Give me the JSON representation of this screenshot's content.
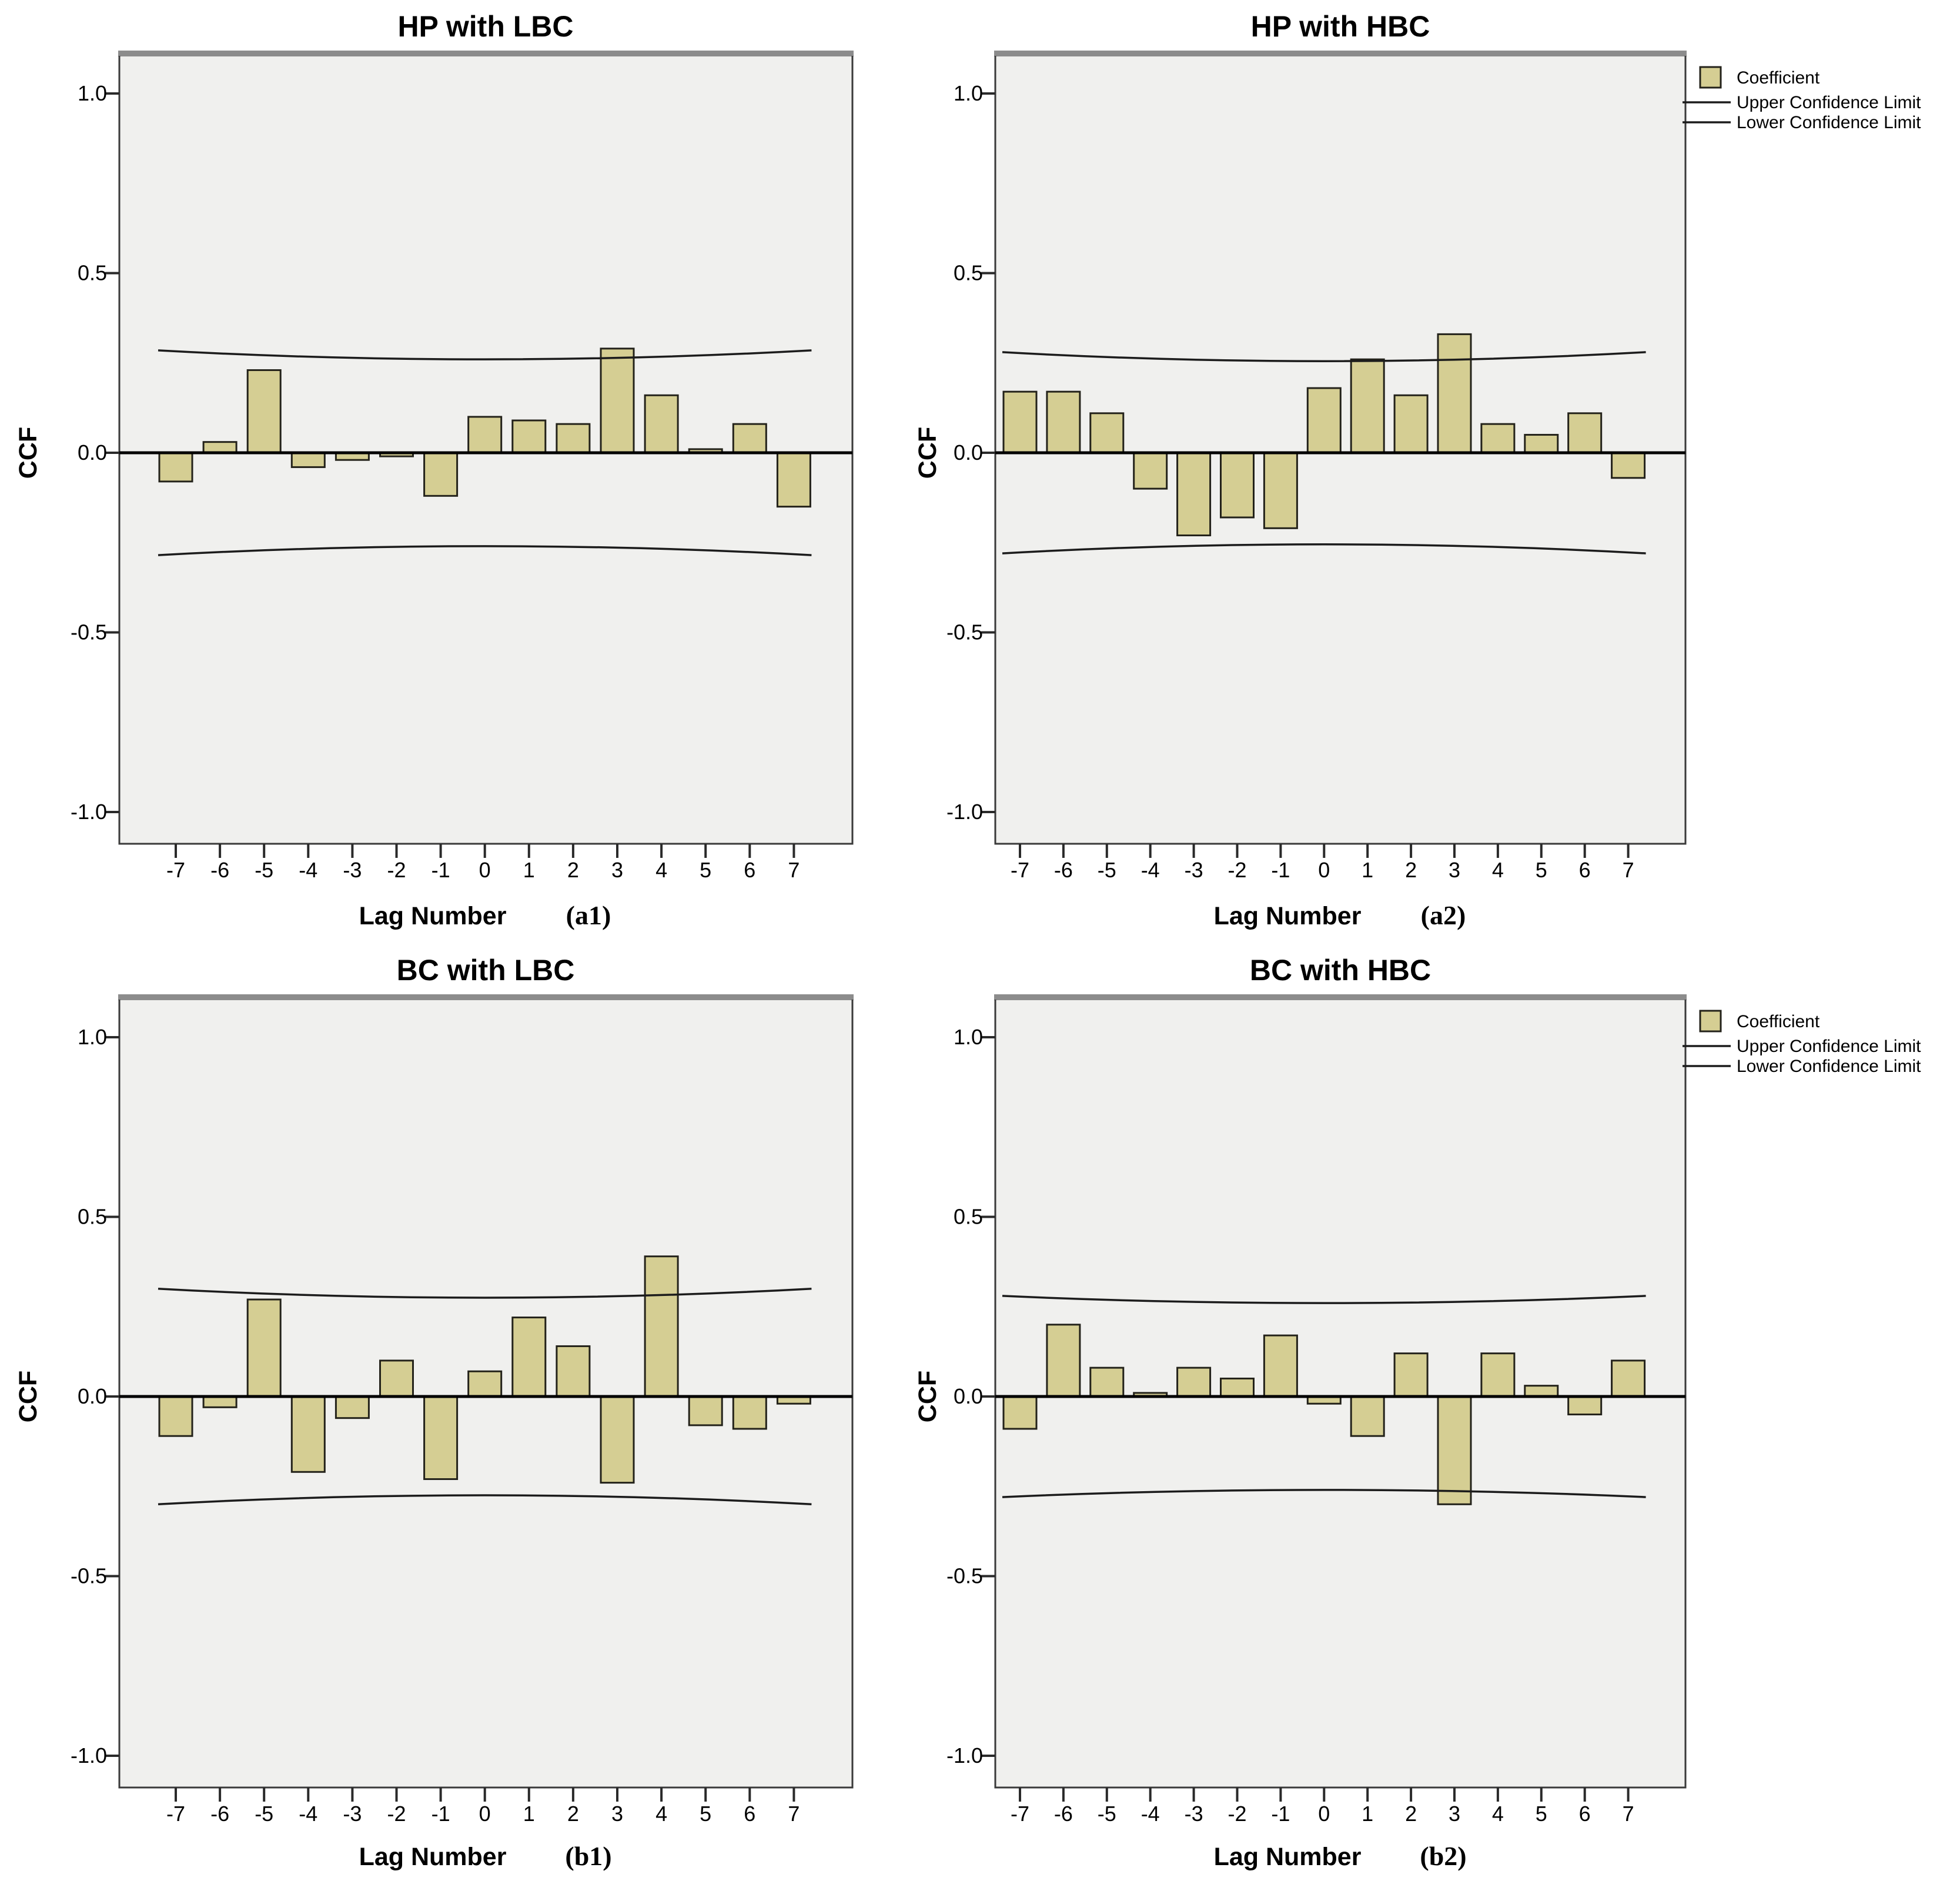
{
  "figure": {
    "background": "#ffffff",
    "plot_background": "#f0f0ee",
    "frame_color": "#3a3a3a",
    "frame_top_color": "#8c8c8c",
    "zero_line_color": "#000000",
    "cl_line_color": "#1c1c1c",
    "bar_fill": "#d5ce93",
    "bar_border": "#23221a"
  },
  "axes": {
    "ylabel": "CCF",
    "xlabel": "Lag Number",
    "ytick_labels": [
      "1.0",
      "0.5",
      "0.0",
      "-0.5",
      "-1.0"
    ],
    "yticks": [
      1.0,
      0.5,
      0.0,
      -0.5,
      -1.0
    ],
    "xtick_labels": [
      "-7",
      "-6",
      "-5",
      "-4",
      "-3",
      "-2",
      "-1",
      "0",
      "1",
      "2",
      "3",
      "4",
      "5",
      "6",
      "7"
    ],
    "ylim": [
      -1.1,
      1.1
    ]
  },
  "legend": {
    "position": "top-right-outside",
    "items": [
      {
        "label": "Coefficient",
        "swatch": "khaki-square"
      },
      {
        "label": "Upper Confidence Limit",
        "swatch": "line"
      },
      {
        "label": "Lower Confidence Limit",
        "swatch": "line"
      }
    ]
  },
  "chart_data": [
    {
      "type": "bar",
      "title": "HP with LBC",
      "panel_tag": "(a1)",
      "xlabel": "Lag Number",
      "ylabel": "CCF",
      "x": [
        -7,
        -6,
        -5,
        -4,
        -3,
        -2,
        -1,
        0,
        1,
        2,
        3,
        4,
        5,
        6,
        7
      ],
      "values": [
        -0.08,
        0.03,
        0.23,
        -0.04,
        -0.02,
        -0.01,
        -0.12,
        0.1,
        0.09,
        0.08,
        0.29,
        0.16,
        0.01,
        0.08,
        -0.15
      ],
      "upper_confidence_limit": {
        "at_ends": 0.285,
        "at_center": 0.26
      },
      "lower_confidence_limit": {
        "at_ends": -0.285,
        "at_center": -0.26
      },
      "yticks": [
        1.0,
        0.5,
        0.0,
        -0.5,
        -1.0
      ],
      "ylim": [
        -1.1,
        1.1
      ],
      "grid": false,
      "legend_visible": false
    },
    {
      "type": "bar",
      "title": "HP with HBC",
      "panel_tag": "(a2)",
      "xlabel": "Lag Number",
      "ylabel": "CCF",
      "x": [
        -7,
        -6,
        -5,
        -4,
        -3,
        -2,
        -1,
        0,
        1,
        2,
        3,
        4,
        5,
        6,
        7
      ],
      "values": [
        0.17,
        0.17,
        0.11,
        -0.1,
        -0.23,
        -0.18,
        -0.21,
        0.18,
        0.26,
        0.16,
        0.33,
        0.08,
        0.05,
        0.11,
        -0.07
      ],
      "upper_confidence_limit": {
        "at_ends": 0.28,
        "at_center": 0.255
      },
      "lower_confidence_limit": {
        "at_ends": -0.28,
        "at_center": -0.255
      },
      "yticks": [
        1.0,
        0.5,
        0.0,
        -0.5,
        -1.0
      ],
      "ylim": [
        -1.1,
        1.1
      ],
      "grid": false,
      "legend_visible": true
    },
    {
      "type": "bar",
      "title": "BC with LBC",
      "panel_tag": "(b1)",
      "xlabel": "Lag Number",
      "ylabel": "CCF",
      "x": [
        -7,
        -6,
        -5,
        -4,
        -3,
        -2,
        -1,
        0,
        1,
        2,
        3,
        4,
        5,
        6,
        7
      ],
      "values": [
        -0.11,
        -0.03,
        0.27,
        -0.21,
        -0.06,
        0.1,
        -0.23,
        0.07,
        0.22,
        0.14,
        -0.24,
        0.39,
        -0.08,
        -0.09,
        -0.02
      ],
      "upper_confidence_limit": {
        "at_ends": 0.3,
        "at_center": 0.275
      },
      "lower_confidence_limit": {
        "at_ends": -0.3,
        "at_center": -0.275
      },
      "yticks": [
        1.0,
        0.5,
        0.0,
        -0.5,
        -1.0
      ],
      "ylim": [
        -1.1,
        1.1
      ],
      "grid": false,
      "legend_visible": false
    },
    {
      "type": "bar",
      "title": "BC with HBC",
      "panel_tag": "(b2)",
      "xlabel": "Lag Number",
      "ylabel": "CCF",
      "x": [
        -7,
        -6,
        -5,
        -4,
        -3,
        -2,
        -1,
        0,
        1,
        2,
        3,
        4,
        5,
        6,
        7
      ],
      "values": [
        -0.09,
        0.2,
        0.08,
        0.01,
        0.08,
        0.05,
        0.17,
        -0.02,
        -0.11,
        0.12,
        -0.3,
        0.12,
        0.03,
        -0.05,
        0.1
      ],
      "upper_confidence_limit": {
        "at_ends": 0.28,
        "at_center": 0.26
      },
      "lower_confidence_limit": {
        "at_ends": -0.28,
        "at_center": -0.26
      },
      "yticks": [
        1.0,
        0.5,
        0.0,
        -0.5,
        -1.0
      ],
      "ylim": [
        -1.1,
        1.1
      ],
      "grid": false,
      "legend_visible": true
    }
  ]
}
